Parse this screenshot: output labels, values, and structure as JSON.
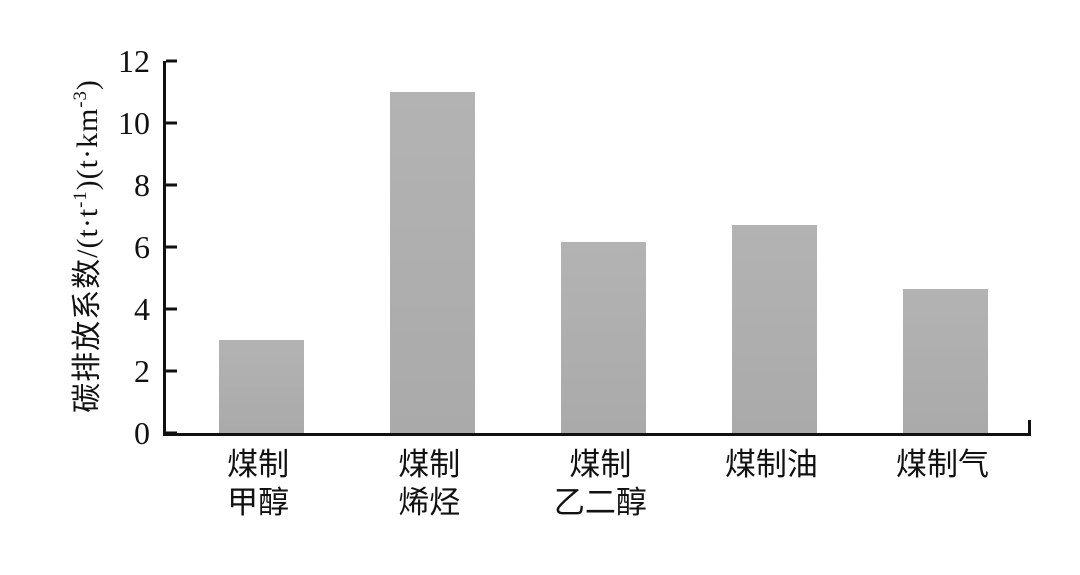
{
  "chart_data": {
    "type": "bar",
    "title": "",
    "categories": [
      "煤制甲醇",
      "煤制烯烃",
      "煤制乙二醇",
      "煤制油",
      "煤制气"
    ],
    "category_lines": [
      [
        "煤制",
        "甲醇"
      ],
      [
        "煤制",
        "烯烃"
      ],
      [
        "煤制",
        "乙二醇"
      ],
      [
        "煤制油"
      ],
      [
        "煤制气"
      ]
    ],
    "values": [
      3.0,
      11.0,
      6.15,
      6.7,
      4.65
    ],
    "xlabel": "",
    "ylabel": "碳排放系数/(t·t⁻¹)(t·km⁻³)",
    "ylabel_parts": {
      "part1": "碳排放系数/(t·t",
      "sup1": "-1",
      "part2": ")(t·km",
      "sup2": "-3",
      "part3": ")"
    },
    "ylim": [
      0,
      12
    ],
    "yticks": [
      0,
      2,
      4,
      6,
      8,
      10,
      12
    ],
    "grid": false,
    "legend": "none",
    "bar_color": "#aeaeae",
    "axis_color": "#111111",
    "layout": {
      "first_bar_center_pct": 11.0,
      "bar_spacing_pct": 19.78,
      "bar_width_pct": 9.8
    }
  }
}
